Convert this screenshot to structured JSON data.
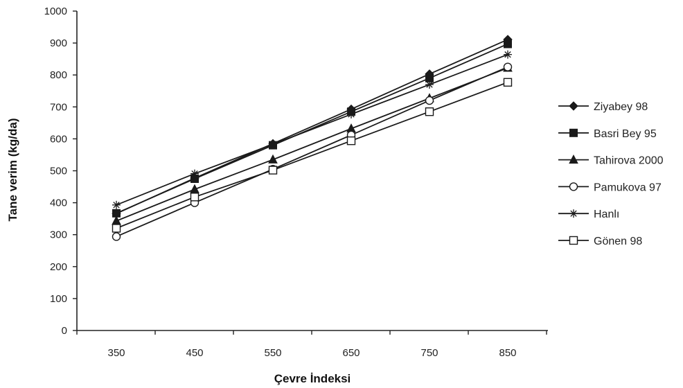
{
  "chart_data": {
    "type": "line",
    "xlabel": "Çevre İndeksi",
    "ylabel": "Tane verim (kg/da)",
    "x": [
      350,
      450,
      550,
      650,
      750,
      850
    ],
    "x_tick_labels": [
      "350",
      "450",
      "550",
      "650",
      "750",
      "850"
    ],
    "ylim": [
      0,
      1000
    ],
    "y_ticks": [
      0,
      100,
      200,
      300,
      400,
      500,
      600,
      700,
      800,
      900,
      1000
    ],
    "y_tick_labels": [
      "0",
      "100",
      "200",
      "300",
      "400",
      "500",
      "600",
      "700",
      "800",
      "900",
      "1000"
    ],
    "grid": false,
    "legend_position": "right",
    "series": [
      {
        "name": "Ziyabey 98",
        "marker": "diamond-filled",
        "values": [
          366,
          477,
          585,
          693,
          803,
          911
        ]
      },
      {
        "name": "Basri Bey 95",
        "marker": "square-filled",
        "values": [
          367,
          475,
          580,
          685,
          790,
          897
        ]
      },
      {
        "name": "Tahirova 2000",
        "marker": "triangle-filled",
        "values": [
          343,
          442,
          535,
          632,
          727,
          822
        ]
      },
      {
        "name": "Pamukova 97",
        "marker": "circle-open",
        "values": [
          294,
          400,
          505,
          612,
          720,
          825
        ]
      },
      {
        "name": "Hanlı",
        "marker": "star",
        "values": [
          393,
          491,
          583,
          677,
          770,
          864
        ]
      },
      {
        "name": "Gönen 98",
        "marker": "square-open",
        "values": [
          320,
          418,
          502,
          594,
          685,
          777
        ]
      }
    ],
    "line_color": "#1a1a1a"
  }
}
